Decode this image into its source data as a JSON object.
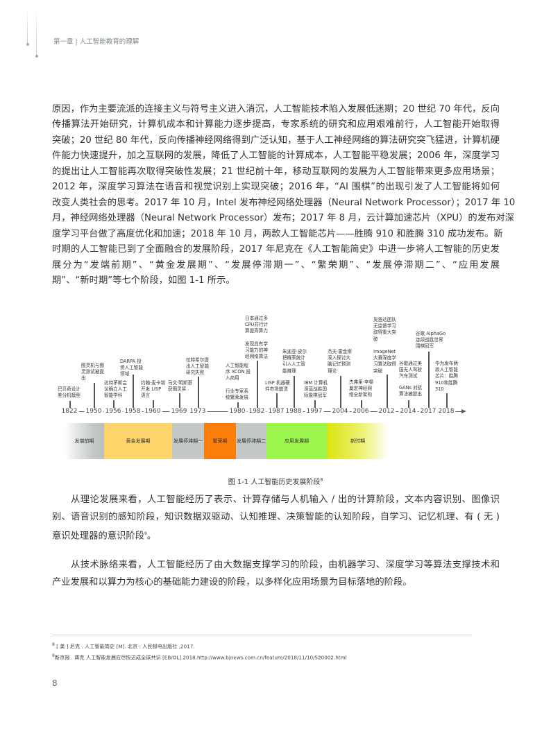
{
  "header": {
    "chapter": "第一章 | 人工智能教育的理解"
  },
  "body": {
    "paragraph1": [
      "原因，作为主要流派的连接主义与符号主义进入消沉，人工智能技术陷入发展低迷期；20 世纪 70 年代，反向",
      "传播算法开始研究，计算机成本和计算能力逐步提高，专家系统的研究和应用艰难前行，人工智能开始取得",
      "突破；20 世纪 80 年代，反向传播神经网络得到广泛认知，基于人工神经网络的算法研究突飞猛进，计算机硬",
      "件能力快速提升，加之互联网的发展，降低了人工智能的计算成本，人工智能平稳发展；2006 年，深度学习",
      "的提出让人工智能再次取得突破性发展；21 世纪前十年，移动互联网的发展为人工智能带来更多应用场景；",
      "2012 年，深度学习算法在语音和视觉识别上实现突破；2016 年，“AI 围棋”的出现引发了人工智能将如何",
      "改变人类社会的思考。2017 年 10 月，Intel 发布神经网络处理器（Neural Network Processor）；2017 年 10",
      "月，神经网络处理器（Neural Network Processor）发布；2017 年 8 月，云计算加速芯片（XPU）的发布对深",
      "度学习平台做了高度优化和加速；2018 年 10 月，两款人工智能芯片——胜腾 910 和胜腾 310 成功发布。新",
      "时期的人工智能已到了全面融合的发展阶段，2017 年尼克在《人工智能简史》中进一步将人工智能的历史发",
      "展分为“发端前期”、“黄金发展期”、“发展停滞期一”、“繁荣期”、“发展停滞期二”、“应用发展",
      "期”、“新时期”等七个阶段，如图 1-1 所示。"
    ],
    "paragraph2": [
      "从理论发展来看，人工智能经历了表示、计算存储与人机输入 / 出的计算阶段，文本内容识别、图像识",
      "别、语音识别的感知阶段，知识数据双驱动、认知推理、决策智能的认知阶段，自学习、记忆机理、有 ( 无 )",
      "意识处理器的意识阶段"
    ],
    "paragraph2_ref": "9",
    "paragraph2_end": "。",
    "paragraph3": [
      "从技术脉络来看，人工智能经历了由大数据支撑学习的阶段，由机器学习、深度学习等算法支撑技术和",
      "产业发展和以算力为核心的基础能力建设的阶段，以多样化应用场景为目标落地的阶段。"
    ]
  },
  "figure": {
    "caption": "图 1-1 人工智能历史发展阶段",
    "caption_ref": "8",
    "years": [
      "1822",
      "1950",
      "1956",
      "1958",
      "1960",
      "1969",
      "1973",
      "1980",
      "1982",
      "1987",
      "1988",
      "1997",
      "2004",
      "2006",
      "2012",
      "2014",
      "2017",
      "2018"
    ],
    "events": [
      {
        "year": "1822",
        "text": "巴贝奇设计\n差分机模型"
      },
      {
        "year": "1950",
        "text": "图灵机与图\n灵测试被提\n出"
      },
      {
        "year": "1956",
        "text": "达特茅斯会\n议确立人工\n智能学科"
      },
      {
        "year": "1958",
        "text": "DARPA 投\n资人工智能\n领域"
      },
      {
        "year": "1960",
        "text": "约翰·麦卡锡\n开发 LISP\n语言"
      },
      {
        "year": "1969",
        "text": "马文·明斯基\n获图灵奖"
      },
      {
        "year": "1973",
        "text": "拉特希尔提\n出人工智能\n研究失败"
      },
      {
        "year": "1980",
        "text": "人工智能程\n序 XCON 投\n入商用"
      },
      {
        "year": "1980",
        "text": "行业专家系\n统繁荣发展"
      },
      {
        "year": "1982",
        "text": "日本通过多\nCPU并行计\n算提高算力"
      },
      {
        "year": "1982",
        "text": "发现具有学\n习能力的神\n经网络算法"
      },
      {
        "year": "1987",
        "text": "LISP 机器硬\n件市场崩溃"
      },
      {
        "year": "1988",
        "text": "朱迪亚·皮尔\n把概率统计\n引入人工智\n能推理"
      },
      {
        "year": "1997",
        "text": "IBM 计算机\n深蓝战胜国\n际象棋冠军"
      },
      {
        "year": "2004",
        "text": "杰夫·霍金斯\n深入探讨大\n脑记忆预测\n理论"
      },
      {
        "year": "2006",
        "text": "杰弗里·辛顿\n奠定神经网\n络全新架构"
      },
      {
        "year": "2012",
        "text": "吴恩达团队\n无监督学习\n取得重大突\n破"
      },
      {
        "year": "2012",
        "text": "ImageNet\n大赛深度学\n习算法取得\n突破"
      },
      {
        "year": "2014",
        "text": "谷歌通过美\n国无人驾驶\n汽车测试"
      },
      {
        "year": "2014",
        "text": "GANs 对抗\n算法被提出"
      },
      {
        "year": "2017",
        "text": "谷歌 AlphaGo\n连续战胜世界\n围棋冠军"
      },
      {
        "year": "2018",
        "text": "华为发布两\n款人工智能\n芯片：胜腾\n910和胜腾\n310"
      }
    ],
    "phases": [
      {
        "label": "发端前期",
        "color": "#c5c9c9"
      },
      {
        "label": "黄金发展期",
        "color": "#fdd56a"
      },
      {
        "label": "发展停滞期一",
        "color": "#c3c7c6"
      },
      {
        "label": "繁荣期",
        "color": "#fb7f0a"
      },
      {
        "label": "发展停滞期二",
        "color": "#c3c7c6"
      },
      {
        "label": "应用发展期",
        "color": "#9bf74d"
      },
      {
        "label": "新时期",
        "color": "#dbe40e"
      }
    ]
  },
  "footnotes": [
    {
      "ref": "8",
      "text": "[ 美 ] 尼克 . 人工智能简史 [M]. 北京 : 人民邮电出版社 ,2017."
    },
    {
      "ref": "9",
      "text": "新京报 . 龚克 人工智能发展应尽快达成全球共识 [EB/OL].2018.http://www.bjnews.com.cn/feature/2018/11/10/520002.html"
    }
  ],
  "page_number": "8"
}
